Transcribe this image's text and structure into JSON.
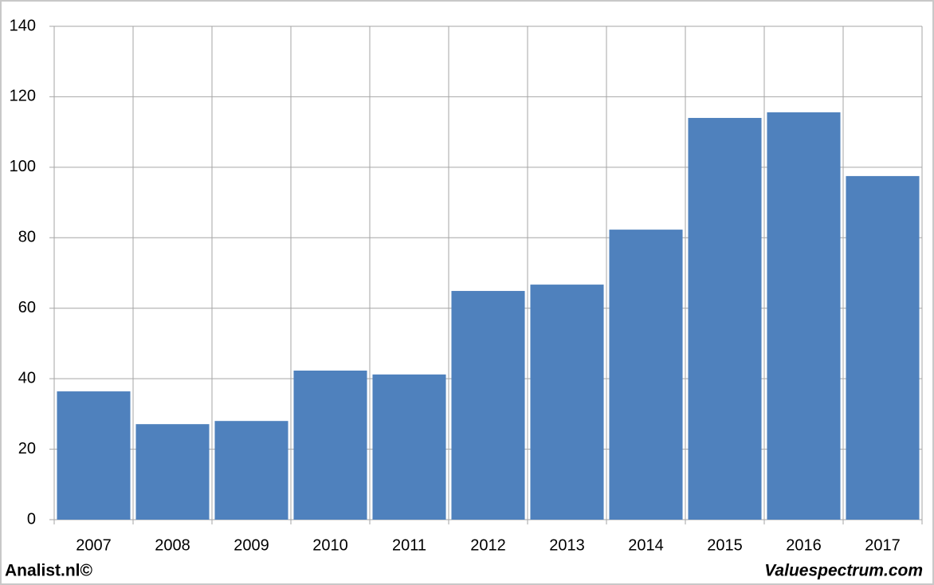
{
  "chart_data": {
    "type": "bar",
    "categories": [
      "2007",
      "2008",
      "2009",
      "2010",
      "2011",
      "2012",
      "2013",
      "2014",
      "2015",
      "2016",
      "2017"
    ],
    "values": [
      36.4,
      27.1,
      28.0,
      42.3,
      41.2,
      64.9,
      66.7,
      82.3,
      114.0,
      115.6,
      97.5
    ],
    "color": "#4f81bd",
    "ylim": [
      0,
      140
    ],
    "yticks": [
      0,
      20,
      40,
      60,
      80,
      100,
      120,
      140
    ],
    "grid": true,
    "source": "Analist.nl©",
    "credit": "Valuespectrum.com"
  }
}
